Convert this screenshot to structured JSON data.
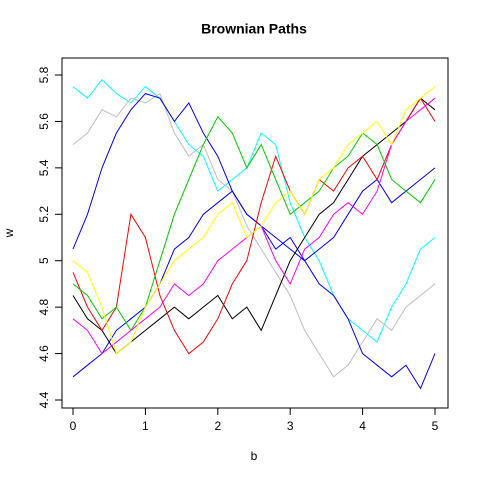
{
  "chart_data": {
    "type": "line",
    "title": "Brownian Paths",
    "x_label": "b",
    "y_label": "w",
    "x": [
      0,
      0.2,
      0.4,
      0.6,
      0.8,
      1,
      1.2,
      1.4,
      1.6,
      1.8,
      2,
      2.2,
      2.4,
      2.6,
      2.8,
      3,
      3.2,
      3.4,
      3.6,
      3.8,
      4,
      4.2,
      4.4,
      4.6,
      4.8,
      5
    ],
    "series": [
      {
        "color": "#00ffff",
        "values": [
          5.75,
          5.7,
          5.78,
          5.72,
          5.68,
          5.75,
          5.7,
          5.6,
          5.5,
          5.45,
          5.3,
          5.35,
          5.4,
          5.55,
          5.5,
          5.25,
          5.1,
          5.0,
          4.85,
          4.75,
          4.7,
          4.65,
          4.8,
          4.9,
          5.05,
          5.1
        ]
      },
      {
        "color": "#bebebe",
        "values": [
          5.5,
          5.55,
          5.65,
          5.62,
          5.7,
          5.68,
          5.72,
          5.55,
          5.45,
          5.5,
          5.35,
          5.3,
          5.15,
          5.05,
          4.95,
          4.85,
          4.7,
          4.6,
          4.5,
          4.55,
          4.65,
          4.75,
          4.7,
          4.8,
          4.85,
          4.9
        ]
      },
      {
        "color": "#0000ff",
        "values": [
          5.05,
          5.2,
          5.4,
          5.55,
          5.65,
          5.72,
          5.7,
          5.6,
          5.68,
          5.55,
          5.45,
          5.3,
          5.2,
          5.15,
          5.05,
          5.1,
          5.0,
          4.9,
          4.85,
          4.75,
          4.6,
          4.55,
          4.5,
          4.55,
          4.45,
          4.6
        ]
      },
      {
        "color": "#0000ff",
        "values": [
          4.5,
          4.55,
          4.6,
          4.7,
          4.75,
          4.8,
          4.9,
          5.05,
          5.1,
          5.2,
          5.25,
          5.3,
          5.2,
          5.15,
          5.1,
          5.05,
          5.0,
          5.05,
          5.1,
          5.2,
          5.3,
          5.35,
          5.25,
          5.3,
          5.35,
          5.4
        ]
      },
      {
        "color": "#000000",
        "values": [
          4.85,
          4.75,
          4.7,
          4.6,
          4.65,
          4.7,
          4.75,
          4.8,
          4.75,
          4.8,
          4.85,
          4.75,
          4.8,
          4.7,
          4.85,
          5.0,
          5.1,
          5.2,
          5.25,
          5.35,
          5.45,
          5.5,
          5.55,
          5.6,
          5.7,
          5.65
        ]
      },
      {
        "color": "#ff0000",
        "values": [
          4.95,
          4.8,
          4.7,
          4.8,
          5.2,
          5.1,
          4.85,
          4.7,
          4.6,
          4.65,
          4.75,
          4.9,
          5.0,
          5.25,
          5.45,
          5.3,
          5.2,
          5.35,
          5.3,
          5.4,
          5.45,
          5.35,
          5.5,
          5.6,
          5.7,
          5.6
        ]
      },
      {
        "color": "#00cd00",
        "values": [
          4.9,
          4.85,
          4.75,
          4.8,
          4.7,
          4.8,
          5.0,
          5.2,
          5.35,
          5.5,
          5.62,
          5.55,
          5.4,
          5.5,
          5.35,
          5.2,
          5.25,
          5.3,
          5.4,
          5.45,
          5.55,
          5.5,
          5.35,
          5.3,
          5.25,
          5.35
        ]
      },
      {
        "color": "#ff00ff",
        "values": [
          4.75,
          4.7,
          4.6,
          4.65,
          4.7,
          4.75,
          4.8,
          4.9,
          4.85,
          4.9,
          5.0,
          5.05,
          5.1,
          5.15,
          5.0,
          4.9,
          5.05,
          5.1,
          5.2,
          5.25,
          5.2,
          5.3,
          5.5,
          5.6,
          5.65,
          5.7
        ]
      },
      {
        "color": "#ffff00",
        "values": [
          5.0,
          4.95,
          4.8,
          4.6,
          4.65,
          4.8,
          4.9,
          5.0,
          5.05,
          5.1,
          5.2,
          5.25,
          5.1,
          5.15,
          5.25,
          5.3,
          5.2,
          5.35,
          5.4,
          5.5,
          5.55,
          5.6,
          5.5,
          5.65,
          5.7,
          5.75
        ]
      }
    ],
    "xlim": [
      0,
      5
    ],
    "xticks": [
      0,
      1,
      2,
      3,
      4,
      5
    ],
    "ylim": [
      4.4,
      5.8
    ],
    "yticks": [
      4.4,
      4.6,
      4.8,
      5,
      5.2,
      5.4,
      5.6,
      5.8
    ]
  }
}
